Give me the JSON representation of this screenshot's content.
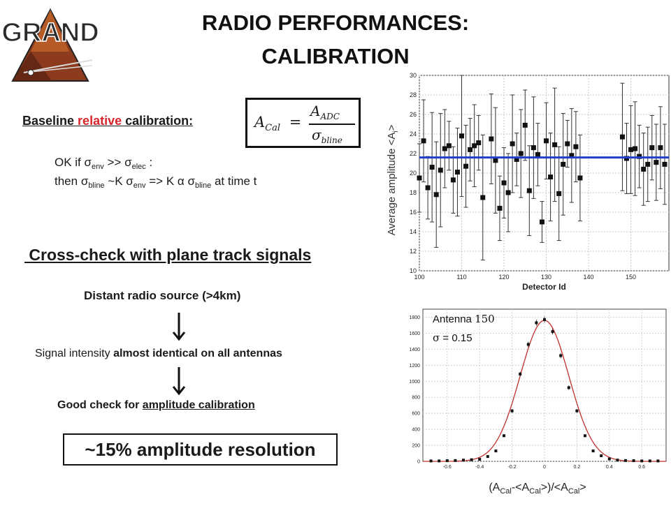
{
  "slide": {
    "title_line1": "RADIO PERFORMANCES:",
    "title_line2": "CALIBRATION",
    "logo_text": "GRAND"
  },
  "left": {
    "baseline_prefix": "Baseline ",
    "baseline_red": "relative",
    "baseline_suffix": " calibration:",
    "formula": {
      "lhs": "A",
      "lhs_sub": "Cal",
      "eq": "=",
      "num": "A",
      "num_sub": "ADC",
      "den": "σ",
      "den_sub": "bline"
    },
    "ok_line": {
      "a": "OK if ",
      "s1": "σ",
      "s1_sub": "env",
      "b": " >> ",
      "s2": "σ",
      "s2_sub": "elec",
      "c": " :"
    },
    "then_line": {
      "a": "then ",
      "s1": "σ",
      "s1_sub": "bline",
      "b": " ~K ",
      "s2": "σ",
      "s2_sub": "env",
      "c": " => K ",
      "alpha": "α",
      "d": " ",
      "s3": "σ",
      "s3_sub": "bline",
      "e": " at time t"
    },
    "crosscheck": " Cross-check with plane track signals",
    "distant": "Distant radio source (>4km)",
    "signal_a": "Signal intensity ",
    "signal_b": "almost identical on all antennas",
    "good_a": "Good check for ",
    "good_b": "amplitude calibration",
    "result": "~15% amplitude resolution"
  },
  "chart_data": [
    {
      "type": "scatter",
      "title": "",
      "xlabel": "Detector Id",
      "ylabel": "Average amplitude <A",
      "ylabel_sub": "i",
      "ylabel_end": ">",
      "xlim": [
        100,
        159
      ],
      "ylim": [
        10,
        30
      ],
      "xticks": [
        "100",
        "110",
        "120",
        "130",
        "140",
        "150"
      ],
      "yticks": [
        "10",
        "12",
        "14",
        "16",
        "18",
        "20",
        "22",
        "24",
        "26",
        "28",
        "30"
      ],
      "grid": true,
      "series": [
        {
          "x": [
            100,
            101,
            102,
            103,
            104,
            105,
            106,
            107,
            108,
            109,
            110,
            111,
            112,
            113,
            114,
            115,
            117,
            118,
            119,
            120,
            121,
            122,
            123,
            124,
            125,
            126,
            127,
            128,
            129,
            130,
            131,
            132,
            133,
            134,
            135,
            136,
            137,
            138,
            148,
            149,
            150,
            151,
            152,
            153,
            154,
            155,
            156,
            157,
            158
          ],
          "y": [
            19.5,
            23.3,
            18.5,
            20.6,
            17.8,
            20.3,
            22.5,
            22.8,
            19.3,
            20.1,
            23.8,
            20.7,
            22.4,
            22.8,
            23.1,
            17.5,
            23.5,
            21.3,
            16.4,
            19.0,
            18.0,
            23.0,
            21.4,
            22.0,
            24.9,
            18.2,
            22.6,
            21.9,
            15.0,
            23.3,
            19.6,
            22.9,
            17.9,
            20.9,
            23.0,
            21.8,
            22.7,
            19.5,
            23.7,
            21.5,
            22.4,
            22.5,
            21.7,
            20.4,
            20.9,
            22.6,
            21.1,
            22.6,
            20.9
          ],
          "err": [
            3.5,
            4.2,
            3.2,
            5.6,
            5.4,
            5.8,
            4.0,
            2.5,
            3.4,
            4.5,
            6.2,
            4.2,
            3.2,
            4.2,
            2.8,
            6.4,
            4.6,
            5.4,
            3.3,
            3.6,
            4.0,
            5.0,
            2.7,
            4.5,
            3.6,
            4.6,
            5.2,
            3.2,
            2.1,
            3.9,
            4.5,
            5.8,
            4.8,
            5.2,
            2.4,
            4.8,
            3.6,
            4.4,
            5.5,
            3.6,
            4.5,
            4.8,
            3.2,
            3.7,
            3.8,
            3.3,
            3.9,
            4.2,
            4.1
          ]
        }
      ],
      "mean_line": 21.6,
      "mean_color": "#1f3fc4"
    },
    {
      "type": "scatter",
      "title": "",
      "xlabel": "(A",
      "xlabel_sub1": "Cal",
      "xlabel_mid": "-<A",
      "xlabel_sub2": "Cal",
      "xlabel_mid2": ">)/<A",
      "xlabel_sub3": "Cal",
      "xlabel_end": ">",
      "xlim": [
        -0.75,
        0.75
      ],
      "ylim": [
        0,
        1900
      ],
      "xticks": [
        "-0.6",
        "-0.4",
        "-0.2",
        "0",
        "0.2",
        "0.4",
        "0.6"
      ],
      "yticks": [
        "0",
        "200",
        "400",
        "600",
        "800",
        "1000",
        "1200",
        "1400",
        "1600",
        "1800"
      ],
      "grid": true,
      "legend": {
        "line1": "Antenna ",
        "line1_num": "150",
        "line2_sym": "σ",
        "line2_val": " = 0.15"
      },
      "points": {
        "x": [
          -0.7,
          -0.65,
          -0.6,
          -0.55,
          -0.5,
          -0.45,
          -0.4,
          -0.35,
          -0.3,
          -0.25,
          -0.2,
          -0.15,
          -0.1,
          -0.05,
          0.0,
          0.05,
          0.1,
          0.15,
          0.2,
          0.25,
          0.3,
          0.35,
          0.4,
          0.45,
          0.5,
          0.55,
          0.6,
          0.65,
          0.7
        ],
        "y": [
          5,
          5,
          8,
          10,
          15,
          20,
          25,
          60,
          130,
          320,
          630,
          1090,
          1460,
          1730,
          1770,
          1620,
          1320,
          920,
          630,
          320,
          130,
          70,
          30,
          15,
          10,
          8,
          5,
          5,
          5
        ]
      },
      "fit": {
        "mu": 0.0,
        "sigma": 0.15,
        "amp": 1760,
        "color": "#c0302b"
      }
    }
  ]
}
